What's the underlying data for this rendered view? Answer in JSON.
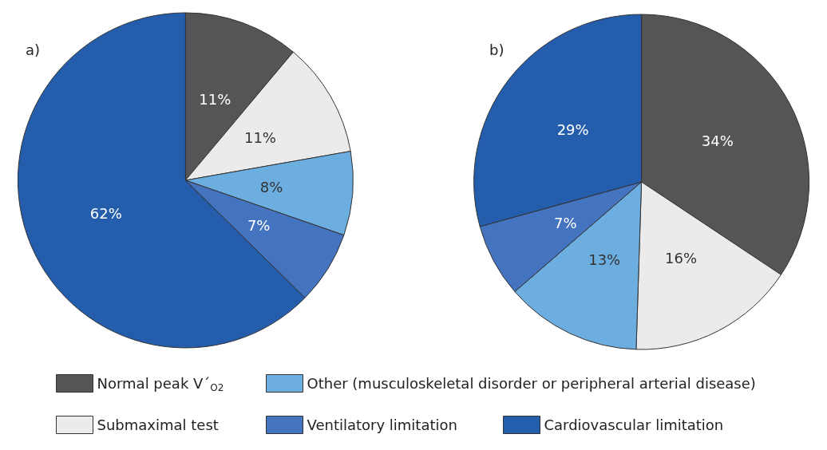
{
  "chart_data": [
    {
      "type": "pie",
      "title": "a)",
      "categories": [
        "Normal peak V´$_{O2}$",
        "Submaximal test",
        "Other (musculoskeletal disorder or peripheral arterial disease)",
        "Ventilatory limitation",
        "Cardiovascular limitation"
      ],
      "values": [
        11,
        11,
        8,
        7,
        62
      ],
      "value_labels": [
        "11%",
        "11%",
        "8%",
        "7%",
        "62%"
      ],
      "colors": [
        "#555557",
        "#ebebeb",
        "#6daee0",
        "#4474bf",
        "#235dab"
      ],
      "legend": "bottom"
    },
    {
      "type": "pie",
      "title": "b)",
      "categories": [
        null,
        null,
        null,
        null,
        null
      ],
      "values": [
        34,
        16,
        13,
        7,
        29
      ],
      "value_labels": [
        "34%",
        "16%",
        "13%",
        "7%",
        "29%"
      ],
      "colors": [
        "#555557",
        "#ebebeb",
        "#6daee0",
        "#4474bf",
        "#235dab"
      ]
    }
  ]
}
